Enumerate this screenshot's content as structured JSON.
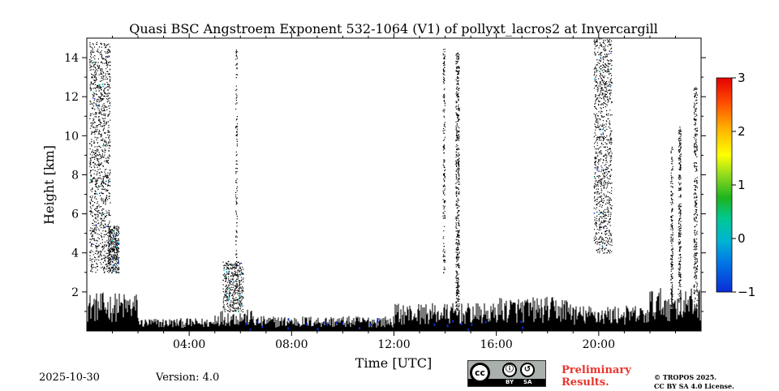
{
  "chart_data": {
    "type": "heatmap",
    "title": "Quasi BSC Angstroem Exponent 532-1064 (V1) of pollyxt_lacros2 at Invercargill",
    "xlabel": "Time [UTC]",
    "ylabel": "Height [km]",
    "xlim_hours": [
      0,
      24
    ],
    "ylim_km": [
      0,
      15
    ],
    "x_ticks": [
      {
        "hour": 4,
        "label": "04:00"
      },
      {
        "hour": 8,
        "label": "08:00"
      },
      {
        "hour": 12,
        "label": "12:00"
      },
      {
        "hour": 16,
        "label": "16:00"
      },
      {
        "hour": 20,
        "label": "20:00"
      }
    ],
    "y_ticks": [
      {
        "km": 2,
        "label": "2"
      },
      {
        "km": 4,
        "label": "4"
      },
      {
        "km": 6,
        "label": "6"
      },
      {
        "km": 8,
        "label": "8"
      },
      {
        "km": 10,
        "label": "10"
      },
      {
        "km": 12,
        "label": "12"
      },
      {
        "km": 14,
        "label": "14"
      }
    ],
    "colorbar": {
      "min": -1,
      "max": 3,
      "ticks": [
        "3",
        "2",
        "1",
        "0",
        "−1"
      ],
      "colormap": "jet",
      "colors": [
        "#0a2cd6",
        "#00a0e6",
        "#00c8a0",
        "#20b020",
        "#b4e61e",
        "#ffff00",
        "#ffb400",
        "#ff5a00",
        "#e60000"
      ]
    },
    "layers": {
      "boundary_layer": {
        "description_value": "dense values near 0 dominant below ~1 km",
        "segments": [
          {
            "from_hour": 0.0,
            "to_hour": 2.0,
            "top_km": 1.8
          },
          {
            "from_hour": 2.0,
            "to_hour": 5.0,
            "top_km": 0.6
          },
          {
            "from_hour": 5.0,
            "to_hour": 6.5,
            "top_km": 1.0
          },
          {
            "from_hour": 6.5,
            "to_hour": 12.0,
            "top_km": 0.7
          },
          {
            "from_hour": 12.0,
            "to_hour": 16.0,
            "top_km": 1.3
          },
          {
            "from_hour": 16.0,
            "to_hour": 19.0,
            "top_km": 1.6
          },
          {
            "from_hour": 19.0,
            "to_hour": 22.0,
            "top_km": 1.2
          },
          {
            "from_hour": 22.0,
            "to_hour": 24.0,
            "top_km": 2.0
          }
        ]
      },
      "cloud_columns": [
        {
          "hour": 0.1,
          "width_hours": 0.8,
          "base_km": 3.0,
          "top_km": 14.8,
          "density": 0.35
        },
        {
          "hour": 0.8,
          "width_hours": 0.45,
          "base_km": 3.0,
          "top_km": 5.4,
          "density": 0.95
        },
        {
          "hour": 5.8,
          "width_hours": 0.06,
          "base_km": 2.0,
          "top_km": 14.5,
          "density": 0.45
        },
        {
          "hour": 5.3,
          "width_hours": 0.8,
          "base_km": 1.0,
          "top_km": 3.6,
          "density": 0.55
        },
        {
          "hour": 13.9,
          "width_hours": 0.08,
          "base_km": 3.0,
          "top_km": 14.5,
          "density": 0.55
        },
        {
          "hour": 14.4,
          "width_hours": 0.14,
          "base_km": 0.0,
          "top_km": 14.3,
          "density": 0.75
        },
        {
          "hour": 19.8,
          "width_hours": 0.7,
          "base_km": 4.0,
          "top_km": 15.0,
          "density": 0.35
        },
        {
          "hour": 22.8,
          "width_hours": 0.08,
          "base_km": 1.0,
          "top_km": 9.5,
          "density": 0.8
        },
        {
          "hour": 23.1,
          "width_hours": 0.1,
          "base_km": 1.5,
          "top_km": 10.5,
          "density": 0.8
        },
        {
          "hour": 23.7,
          "width_hours": 0.14,
          "base_km": 1.0,
          "top_km": 12.5,
          "density": 0.55
        }
      ]
    }
  },
  "footer": {
    "date": "2025-10-30",
    "version": "Version: 4.0",
    "preliminary_line1": "Preliminary",
    "preliminary_line2": "Results.",
    "copyright_line1": "© TROPOS 2025.",
    "copyright_line2": "CC BY SA 4.0 License."
  },
  "license_badge": {
    "cc": "cc",
    "by": "BY",
    "sa": "SA",
    "by_glyph": "ⓘ",
    "sa_glyph": "↺"
  }
}
